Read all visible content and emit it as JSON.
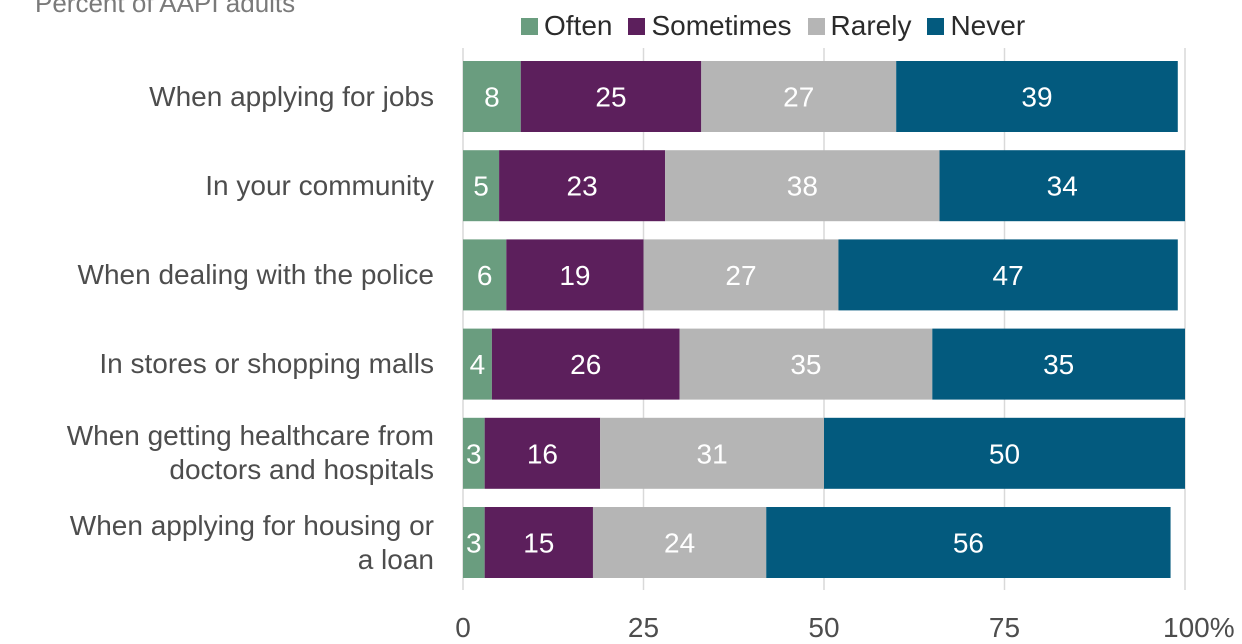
{
  "subtitle": "Percent of AAPI adults",
  "colors": {
    "Often": "#6a9d7f",
    "Sometimes": "#5c1f5c",
    "Rarely": "#b5b5b5",
    "Never": "#035a7e",
    "gridline": "#d9d9d9"
  },
  "chart_data": {
    "type": "bar",
    "orientation": "horizontal",
    "stacked": true,
    "legend_position": "top",
    "grid": true,
    "categories": [
      "When applying for jobs",
      "In your community",
      "When dealing with the police",
      "In stores or shopping malls",
      "When getting healthcare from doctors and hospitals",
      "When applying for housing or a loan"
    ],
    "series": [
      {
        "name": "Often",
        "values": [
          8,
          5,
          6,
          4,
          3,
          3
        ]
      },
      {
        "name": "Sometimes",
        "values": [
          25,
          23,
          19,
          26,
          16,
          15
        ]
      },
      {
        "name": "Rarely",
        "values": [
          27,
          38,
          27,
          35,
          31,
          24
        ]
      },
      {
        "name": "Never",
        "values": [
          39,
          34,
          47,
          35,
          50,
          56
        ]
      }
    ],
    "xlim": [
      0,
      100
    ],
    "xticks": [
      "0",
      "25",
      "50",
      "75",
      "100%"
    ]
  }
}
